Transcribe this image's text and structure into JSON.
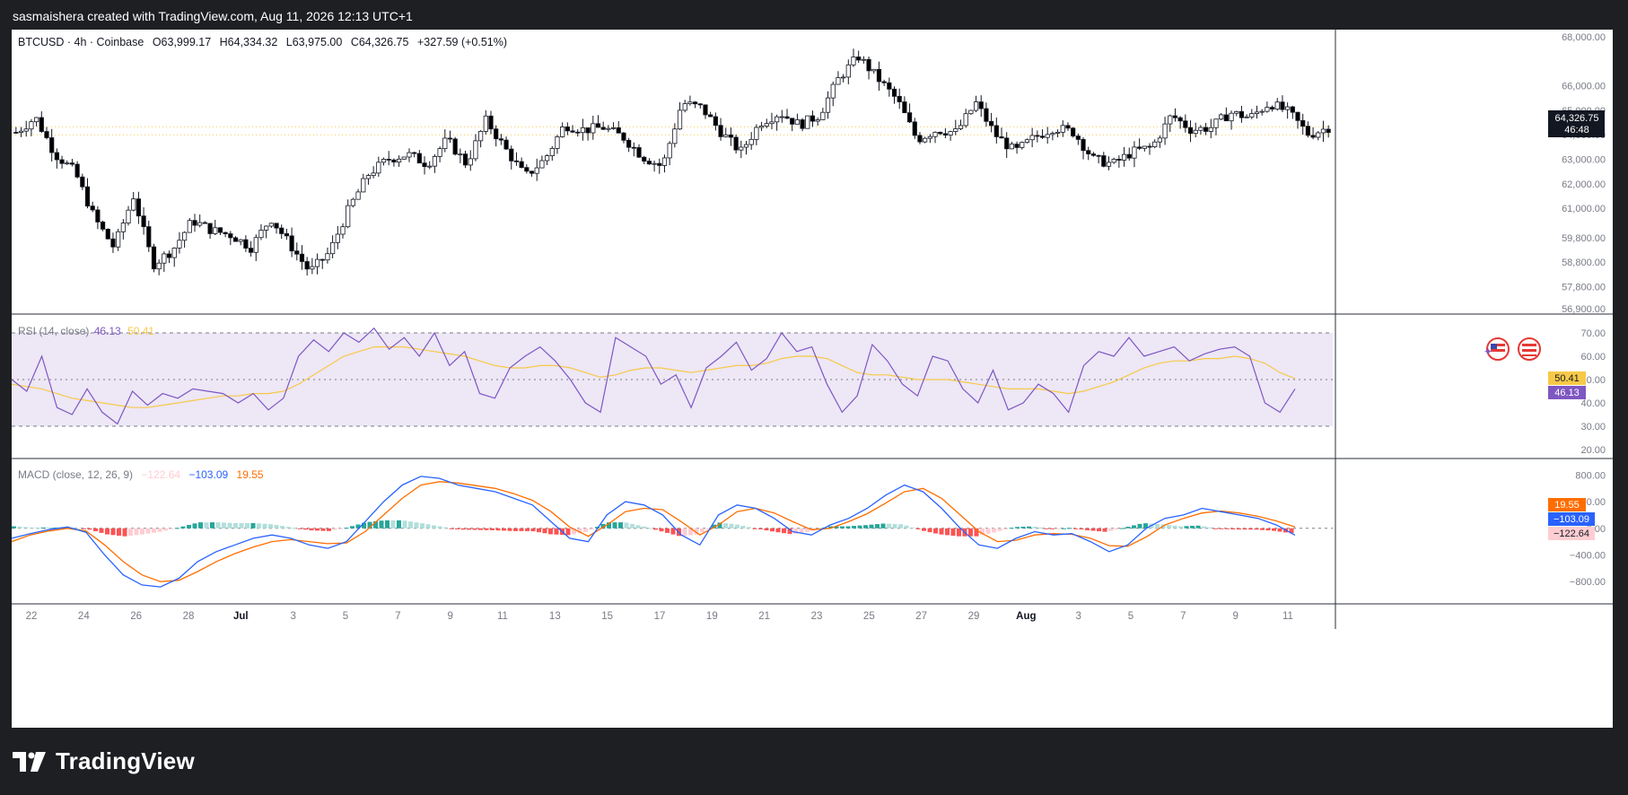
{
  "header": {
    "credit": "sasmaishera created with TradingView.com, Aug 11, 2026 12:13 UTC+1"
  },
  "footer": {
    "brand": "TradingView"
  },
  "colors": {
    "up": "#ffffff",
    "down": "#000000",
    "rsi_line": "#7e57c2",
    "rsi_ma": "#f7c948",
    "rsi_band": "#ede7f6",
    "macd_line": "#2962ff",
    "signal_line": "#ff6d00",
    "hist_pos_strong": "#26a69a",
    "hist_pos_weak": "#b2dfdb",
    "hist_neg_strong": "#ff5252",
    "hist_neg_weak": "#ffcdd2"
  },
  "legend": {
    "symbol": "BTCUSD · 4h · Coinbase",
    "o_label": "O",
    "o_value": "63,999.17",
    "h_label": "H",
    "h_value": "64,334.32",
    "l_label": "L",
    "l_value": "63,975.00",
    "c_label": "C",
    "c_value": "64,326.75",
    "change": "+327.59 (+0.51%)"
  },
  "price_badge": {
    "price": "64,326.75",
    "countdown": "46:48"
  },
  "rsi_legend": {
    "label": "RSI (14, close)",
    "rsi": "46.13",
    "ma": "50.41"
  },
  "macd_legend": {
    "label": "MACD (close, 12, 26, 9)",
    "hist": "−122.64",
    "macd": "−103.09",
    "signal": "19.55"
  },
  "chart_data": [
    {
      "type": "candlestick",
      "title": "BTCUSD · 4h · Coinbase",
      "x_ticks": [
        "22",
        "24",
        "26",
        "28",
        "Jul",
        "3",
        "5",
        "7",
        "9",
        "11",
        "13",
        "15",
        "17",
        "19",
        "21",
        "23",
        "25",
        "27",
        "29",
        "Aug",
        "3",
        "5",
        "7",
        "9",
        "11"
      ],
      "y_ticks": [
        "68,000.00",
        "66,000.00",
        "65,000.00",
        "64,000.00",
        "63,000.00",
        "62,000.00",
        "61,000.00",
        "59,800.00",
        "58,800.00",
        "57,800.00",
        "56,900.00"
      ],
      "ylim": [
        56900,
        68000
      ],
      "close_path": [
        64100,
        64700,
        63200,
        62500,
        60600,
        59400,
        61500,
        58700,
        59300,
        60500,
        60100,
        59900,
        59400,
        60600,
        59500,
        58400,
        59200,
        61000,
        62400,
        63000,
        63200,
        62800,
        63800,
        62800,
        64600,
        63400,
        62300,
        63000,
        64400,
        64200,
        64300,
        63900,
        63100,
        62700,
        65300,
        65100,
        64100,
        63300,
        64500,
        64900,
        64400,
        64800,
        66300,
        67200,
        66300,
        65400,
        63800,
        64200,
        64100,
        65300,
        64000,
        63300,
        63900,
        64300,
        64100,
        63000,
        62800,
        63300,
        63500,
        64800,
        64200,
        64300,
        64900,
        64700,
        65300,
        64900,
        64000,
        64300
      ],
      "last_price": 64326.75,
      "ref_line": 64000
    },
    {
      "type": "line",
      "title": "RSI (14, close)",
      "y_ticks": [
        "70.00",
        "60.00",
        "50.00",
        "40.00",
        "30.00",
        "20.00"
      ],
      "ylim": [
        20,
        70
      ],
      "bands": [
        30,
        50,
        70
      ],
      "series": [
        {
          "name": "RSI",
          "values": [
            50,
            45,
            60,
            38,
            35,
            46,
            36,
            31,
            45,
            39,
            44,
            42,
            46,
            45,
            44,
            40,
            44,
            37,
            42,
            60,
            67,
            62,
            70,
            66,
            72,
            63,
            68,
            60,
            70,
            56,
            62,
            44,
            42,
            55,
            60,
            64,
            58,
            50,
            40,
            36,
            68,
            64,
            60,
            48,
            52,
            38,
            55,
            60,
            66,
            54,
            59,
            70,
            62,
            64,
            48,
            36,
            43,
            65,
            58,
            48,
            43,
            60,
            58,
            46,
            40,
            54,
            37,
            40,
            48,
            44,
            36,
            56,
            62,
            60,
            68,
            60,
            62,
            64,
            58,
            61,
            63,
            64,
            60,
            40,
            36,
            46
          ]
        },
        {
          "name": "RSI MA",
          "values": [
            48,
            47,
            46,
            44,
            42,
            41,
            40,
            39,
            38,
            38,
            39,
            40,
            41,
            42,
            43,
            43,
            44,
            44,
            45,
            48,
            52,
            56,
            60,
            62,
            64,
            64,
            64,
            63,
            62,
            61,
            60,
            58,
            56,
            55,
            55,
            56,
            56,
            55,
            53,
            51,
            52,
            54,
            55,
            55,
            54,
            53,
            54,
            55,
            56,
            56,
            57,
            59,
            60,
            60,
            59,
            56,
            53,
            52,
            52,
            51,
            50,
            50,
            50,
            49,
            48,
            47,
            46,
            46,
            46,
            45,
            44,
            45,
            47,
            49,
            52,
            55,
            57,
            58,
            58,
            59,
            59,
            60,
            59,
            57,
            53,
            50.41
          ]
        }
      ]
    },
    {
      "type": "line",
      "title": "MACD (close, 12, 26, 9)",
      "y_ticks": [
        "800.00",
        "400.00",
        "0.00",
        "−400.00",
        "−800.00"
      ],
      "ylim": [
        -1000,
        900
      ],
      "series": [
        {
          "name": "MACD",
          "values": [
            -150,
            -80,
            -20,
            20,
            -60,
            -400,
            -700,
            -850,
            -880,
            -750,
            -500,
            -350,
            -250,
            -150,
            -100,
            -150,
            -250,
            -300,
            -200,
            100,
            400,
            650,
            780,
            750,
            650,
            600,
            550,
            450,
            350,
            100,
            -150,
            -200,
            200,
            400,
            350,
            200,
            -100,
            -250,
            200,
            350,
            300,
            150,
            -50,
            -100,
            50,
            150,
            300,
            500,
            650,
            550,
            300,
            0,
            -250,
            -300,
            -150,
            -50,
            -100,
            -80,
            -200,
            -350,
            -250,
            0,
            150,
            200,
            300,
            250,
            200,
            150,
            50,
            -103.09
          ]
        },
        {
          "name": "Signal",
          "values": [
            -200,
            -100,
            -40,
            0,
            -40,
            -250,
            -500,
            -700,
            -800,
            -780,
            -650,
            -500,
            -380,
            -280,
            -200,
            -170,
            -200,
            -230,
            -220,
            -50,
            200,
            450,
            650,
            700,
            680,
            640,
            600,
            520,
            420,
            250,
            20,
            -120,
            50,
            250,
            300,
            280,
            100,
            -100,
            50,
            250,
            300,
            230,
            100,
            -20,
            0,
            100,
            220,
            380,
            550,
            600,
            450,
            200,
            -50,
            -200,
            -180,
            -100,
            -80,
            -90,
            -150,
            -260,
            -270,
            -130,
            50,
            150,
            230,
            260,
            230,
            180,
            110,
            19.55
          ]
        },
        {
          "name": "Histogram",
          "values": [
            -122.64
          ]
        }
      ]
    }
  ]
}
